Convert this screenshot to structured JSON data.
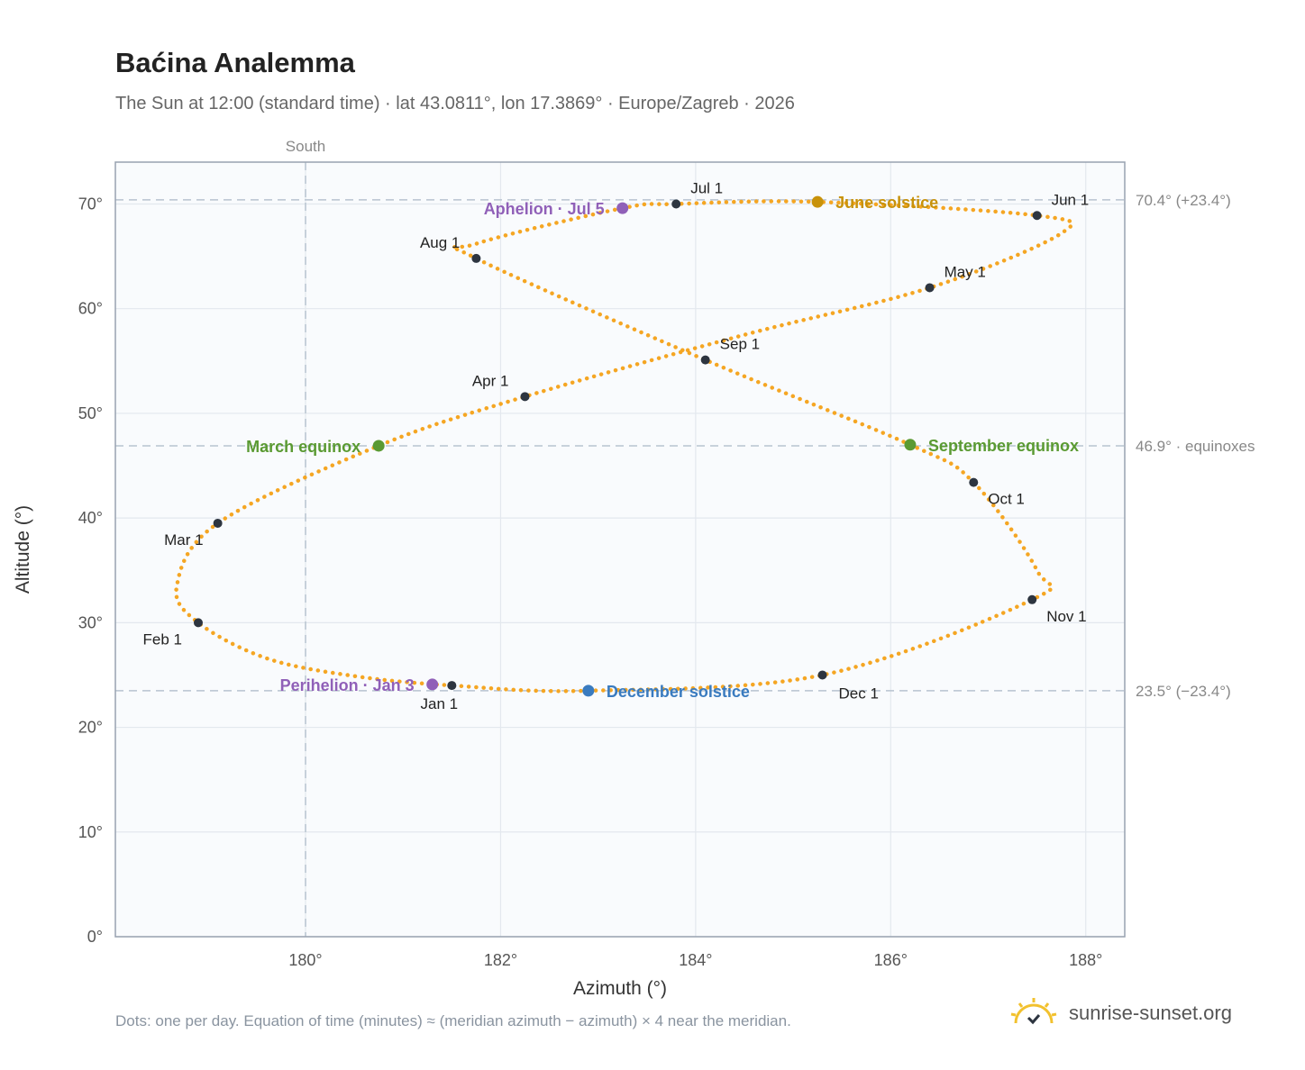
{
  "title": "Baćina Analemma",
  "subtitle": "The Sun at 12:00 (standard time) · lat 43.0811°, lon 17.3869° · Europe/Zagreb · 2026",
  "footnote": "Dots: one per day. Equation of time (minutes) ≈ (meridian azimuth − azimuth) × 4 near the meridian.",
  "brand": {
    "name": "sunrise-sunset.org",
    "icon": "sun-check-icon"
  },
  "colors": {
    "path": "#f5a623",
    "month": "#2d3540",
    "equinox": "#5a9a32",
    "june": "#c8920a",
    "december": "#3a7bbf",
    "apsis": "#9060b8"
  },
  "chart_data": {
    "type": "scatter",
    "xlabel": "Azimuth (°)",
    "ylabel": "Altitude (°)",
    "xlim": [
      178.05,
      188.4
    ],
    "ylim": [
      0,
      74
    ],
    "xticks": [
      180,
      182,
      184,
      186,
      188
    ],
    "xtick_labels": [
      "180°",
      "182°",
      "184°",
      "186°",
      "188°"
    ],
    "yticks": [
      0,
      10,
      20,
      30,
      40,
      50,
      60,
      70
    ],
    "ytick_labels": [
      "0°",
      "10°",
      "20°",
      "30°",
      "40°",
      "50°",
      "60°",
      "70°"
    ],
    "grid": true,
    "meridian": {
      "azimuth": 180,
      "label": "South"
    },
    "reference_lines": [
      {
        "altitude": 70.4,
        "label": "70.4° (+23.4°)"
      },
      {
        "altitude": 46.9,
        "label": "46.9° · equinoxes"
      },
      {
        "altitude": 23.5,
        "label": "23.5° (−23.4°)"
      }
    ],
    "path_anchors": [
      [
        181.5,
        24.0
      ],
      [
        180.5,
        24.9
      ],
      [
        179.6,
        26.6
      ],
      [
        178.9,
        30.0
      ],
      [
        178.68,
        33.5
      ],
      [
        179.1,
        39.5
      ],
      [
        180.75,
        46.9
      ],
      [
        182.25,
        51.6
      ],
      [
        184.5,
        57.5
      ],
      [
        186.4,
        62.0
      ],
      [
        187.75,
        67.2
      ],
      [
        187.5,
        68.9
      ],
      [
        185.25,
        70.2
      ],
      [
        183.8,
        70.0
      ],
      [
        183.25,
        69.6
      ],
      [
        181.75,
        66.2
      ],
      [
        181.75,
        64.8
      ],
      [
        184.1,
        55.1
      ],
      [
        186.2,
        47.0
      ],
      [
        186.85,
        43.4
      ],
      [
        187.5,
        35.0
      ],
      [
        187.45,
        32.2
      ],
      [
        185.3,
        25.0
      ],
      [
        182.9,
        23.5
      ],
      [
        181.5,
        24.0
      ]
    ],
    "months": [
      {
        "label": "Jan 1",
        "az": 181.5,
        "alt": 24.0
      },
      {
        "label": "Feb 1",
        "az": 178.9,
        "alt": 30.0
      },
      {
        "label": "Mar 1",
        "az": 179.1,
        "alt": 39.5
      },
      {
        "label": "Apr 1",
        "az": 182.25,
        "alt": 51.6
      },
      {
        "label": "May 1",
        "az": 186.4,
        "alt": 62.0
      },
      {
        "label": "Jun 1",
        "az": 187.5,
        "alt": 68.9
      },
      {
        "label": "Jul 1",
        "az": 183.8,
        "alt": 70.0
      },
      {
        "label": "Aug 1",
        "az": 181.75,
        "alt": 64.8
      },
      {
        "label": "Sep 1",
        "az": 184.1,
        "alt": 55.1
      },
      {
        "label": "Oct 1",
        "az": 186.85,
        "alt": 43.4
      },
      {
        "label": "Nov 1",
        "az": 187.45,
        "alt": 32.2
      },
      {
        "label": "Dec 1",
        "az": 185.3,
        "alt": 25.0
      }
    ],
    "events": [
      {
        "label": "March equinox",
        "az": 180.75,
        "alt": 46.9,
        "color": "#5a9a32",
        "side": "left"
      },
      {
        "label": "September equinox",
        "az": 186.2,
        "alt": 47.0,
        "color": "#5a9a32",
        "side": "right"
      },
      {
        "label": "June solstice",
        "az": 185.25,
        "alt": 70.2,
        "color": "#c8920a",
        "side": "right"
      },
      {
        "label": "December solstice",
        "az": 182.9,
        "alt": 23.5,
        "color": "#3a7bbf",
        "side": "right"
      },
      {
        "label": "Aphelion · Jul 5",
        "az": 183.25,
        "alt": 69.6,
        "color": "#9060b8",
        "side": "left"
      },
      {
        "label": "Perihelion · Jan 3",
        "az": 181.3,
        "alt": 24.1,
        "color": "#9060b8",
        "side": "left"
      }
    ]
  }
}
